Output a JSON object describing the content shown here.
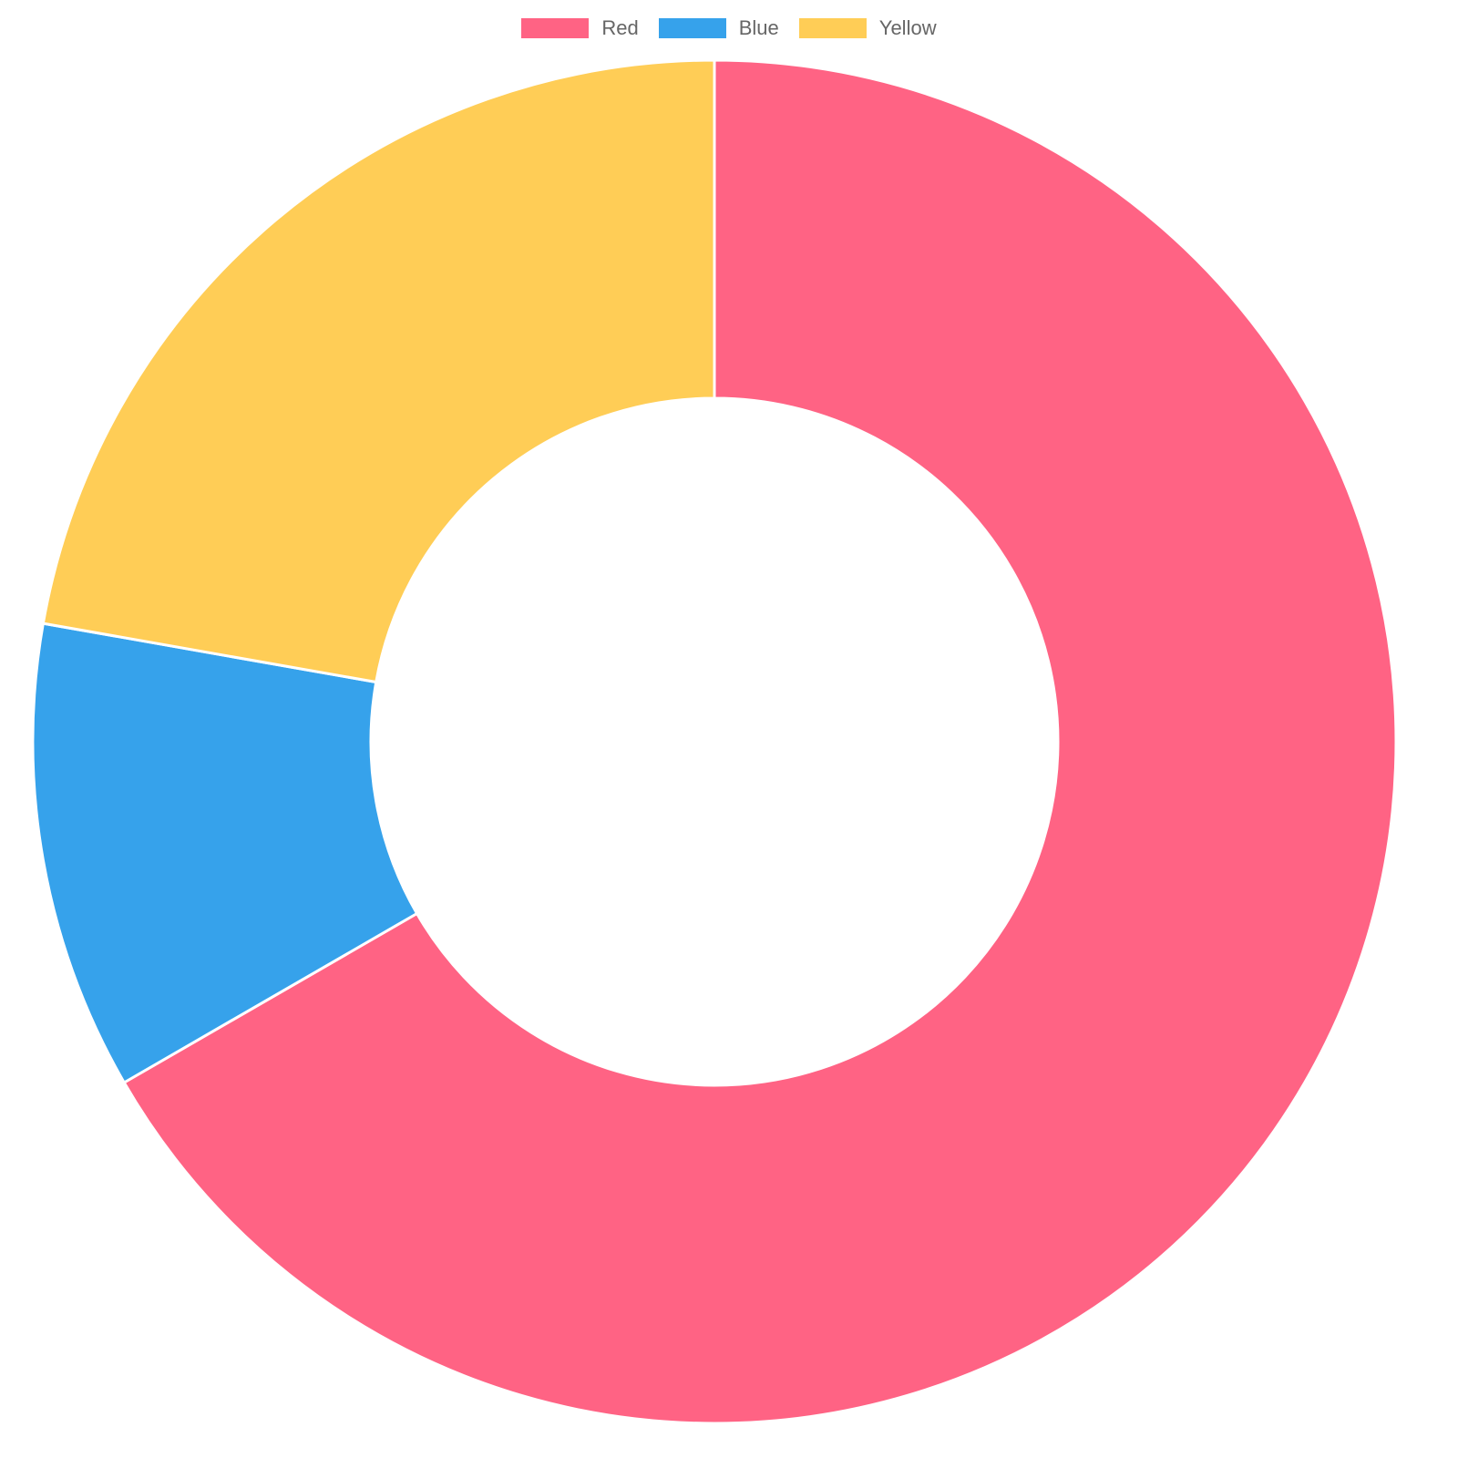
{
  "chart_data": {
    "type": "pie",
    "donut": true,
    "labels": [
      "Red",
      "Blue",
      "Yellow"
    ],
    "values": [
      300,
      50,
      100
    ],
    "colors": [
      "#ff6384",
      "#36a2eb",
      "#ffcd56"
    ],
    "legend_position": "top"
  }
}
